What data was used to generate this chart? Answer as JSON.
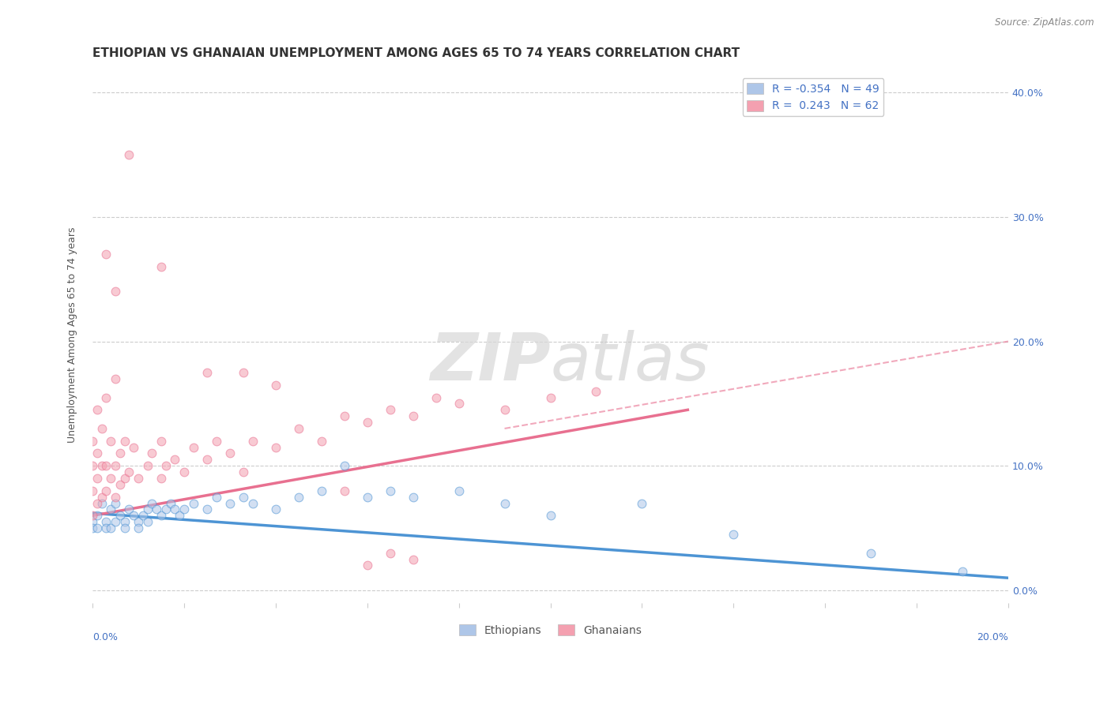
{
  "title": "ETHIOPIAN VS GHANAIAN UNEMPLOYMENT AMONG AGES 65 TO 74 YEARS CORRELATION CHART",
  "source": "Source: ZipAtlas.com",
  "ylabel": "Unemployment Among Ages 65 to 74 years",
  "ytick_values": [
    0.0,
    0.1,
    0.2,
    0.3,
    0.4
  ],
  "xlim": [
    0.0,
    0.2
  ],
  "ylim": [
    -0.01,
    0.42
  ],
  "legend_entries": [
    {
      "label": "R = -0.354   N = 49",
      "color": "#aec6e8"
    },
    {
      "label": "R =  0.243   N = 62",
      "color": "#f4a0b0"
    }
  ],
  "legend_bottom": [
    {
      "label": "Ethiopians",
      "color": "#aec6e8"
    },
    {
      "label": "Ghanaians",
      "color": "#f4a0b0"
    }
  ],
  "ethiopians_scatter": [
    [
      0.0,
      0.055
    ],
    [
      0.0,
      0.05
    ],
    [
      0.001,
      0.06
    ],
    [
      0.001,
      0.05
    ],
    [
      0.002,
      0.07
    ],
    [
      0.003,
      0.055
    ],
    [
      0.003,
      0.05
    ],
    [
      0.004,
      0.065
    ],
    [
      0.004,
      0.05
    ],
    [
      0.005,
      0.07
    ],
    [
      0.005,
      0.055
    ],
    [
      0.006,
      0.06
    ],
    [
      0.007,
      0.055
    ],
    [
      0.007,
      0.05
    ],
    [
      0.008,
      0.065
    ],
    [
      0.009,
      0.06
    ],
    [
      0.01,
      0.055
    ],
    [
      0.01,
      0.05
    ],
    [
      0.011,
      0.06
    ],
    [
      0.012,
      0.065
    ],
    [
      0.012,
      0.055
    ],
    [
      0.013,
      0.07
    ],
    [
      0.014,
      0.065
    ],
    [
      0.015,
      0.06
    ],
    [
      0.016,
      0.065
    ],
    [
      0.017,
      0.07
    ],
    [
      0.018,
      0.065
    ],
    [
      0.019,
      0.06
    ],
    [
      0.02,
      0.065
    ],
    [
      0.022,
      0.07
    ],
    [
      0.025,
      0.065
    ],
    [
      0.027,
      0.075
    ],
    [
      0.03,
      0.07
    ],
    [
      0.033,
      0.075
    ],
    [
      0.035,
      0.07
    ],
    [
      0.04,
      0.065
    ],
    [
      0.045,
      0.075
    ],
    [
      0.05,
      0.08
    ],
    [
      0.055,
      0.1
    ],
    [
      0.06,
      0.075
    ],
    [
      0.065,
      0.08
    ],
    [
      0.07,
      0.075
    ],
    [
      0.08,
      0.08
    ],
    [
      0.09,
      0.07
    ],
    [
      0.1,
      0.06
    ],
    [
      0.12,
      0.07
    ],
    [
      0.14,
      0.045
    ],
    [
      0.17,
      0.03
    ],
    [
      0.19,
      0.015
    ]
  ],
  "ghanaians_scatter": [
    [
      0.0,
      0.06
    ],
    [
      0.0,
      0.08
    ],
    [
      0.0,
      0.1
    ],
    [
      0.0,
      0.12
    ],
    [
      0.001,
      0.07
    ],
    [
      0.001,
      0.09
    ],
    [
      0.001,
      0.11
    ],
    [
      0.001,
      0.145
    ],
    [
      0.002,
      0.075
    ],
    [
      0.002,
      0.1
    ],
    [
      0.002,
      0.13
    ],
    [
      0.003,
      0.08
    ],
    [
      0.003,
      0.1
    ],
    [
      0.003,
      0.155
    ],
    [
      0.004,
      0.09
    ],
    [
      0.004,
      0.12
    ],
    [
      0.005,
      0.075
    ],
    [
      0.005,
      0.1
    ],
    [
      0.005,
      0.17
    ],
    [
      0.006,
      0.085
    ],
    [
      0.006,
      0.11
    ],
    [
      0.007,
      0.09
    ],
    [
      0.007,
      0.12
    ],
    [
      0.008,
      0.095
    ],
    [
      0.009,
      0.115
    ],
    [
      0.01,
      0.09
    ],
    [
      0.012,
      0.1
    ],
    [
      0.013,
      0.11
    ],
    [
      0.015,
      0.09
    ],
    [
      0.015,
      0.12
    ],
    [
      0.016,
      0.1
    ],
    [
      0.018,
      0.105
    ],
    [
      0.02,
      0.095
    ],
    [
      0.022,
      0.115
    ],
    [
      0.025,
      0.105
    ],
    [
      0.025,
      0.175
    ],
    [
      0.027,
      0.12
    ],
    [
      0.03,
      0.11
    ],
    [
      0.033,
      0.095
    ],
    [
      0.033,
      0.175
    ],
    [
      0.035,
      0.12
    ],
    [
      0.04,
      0.115
    ],
    [
      0.04,
      0.165
    ],
    [
      0.045,
      0.13
    ],
    [
      0.05,
      0.12
    ],
    [
      0.055,
      0.14
    ],
    [
      0.055,
      0.08
    ],
    [
      0.06,
      0.135
    ],
    [
      0.065,
      0.145
    ],
    [
      0.07,
      0.14
    ],
    [
      0.075,
      0.155
    ],
    [
      0.08,
      0.15
    ],
    [
      0.09,
      0.145
    ],
    [
      0.1,
      0.155
    ],
    [
      0.11,
      0.16
    ],
    [
      0.003,
      0.27
    ],
    [
      0.005,
      0.24
    ],
    [
      0.008,
      0.35
    ],
    [
      0.015,
      0.26
    ],
    [
      0.06,
      0.02
    ],
    [
      0.065,
      0.03
    ],
    [
      0.07,
      0.025
    ]
  ],
  "blue_line": {
    "x": [
      0.0,
      0.2
    ],
    "y": [
      0.062,
      0.01
    ]
  },
  "pink_line": {
    "x": [
      0.0,
      0.13
    ],
    "y": [
      0.06,
      0.145
    ]
  },
  "pink_line_dash": {
    "x": [
      0.09,
      0.2
    ],
    "y": [
      0.13,
      0.2
    ]
  },
  "scatter_alpha": 0.55,
  "scatter_size": 60,
  "blue_color": "#4d94d4",
  "blue_light": "#aec6e8",
  "pink_color": "#e87090",
  "pink_light": "#f4a0b0",
  "grid_color": "#cccccc",
  "background_color": "#ffffff",
  "watermark_zip": "ZIP",
  "watermark_atlas": "atlas",
  "title_fontsize": 11,
  "axis_label_fontsize": 9,
  "tick_fontsize": 9
}
